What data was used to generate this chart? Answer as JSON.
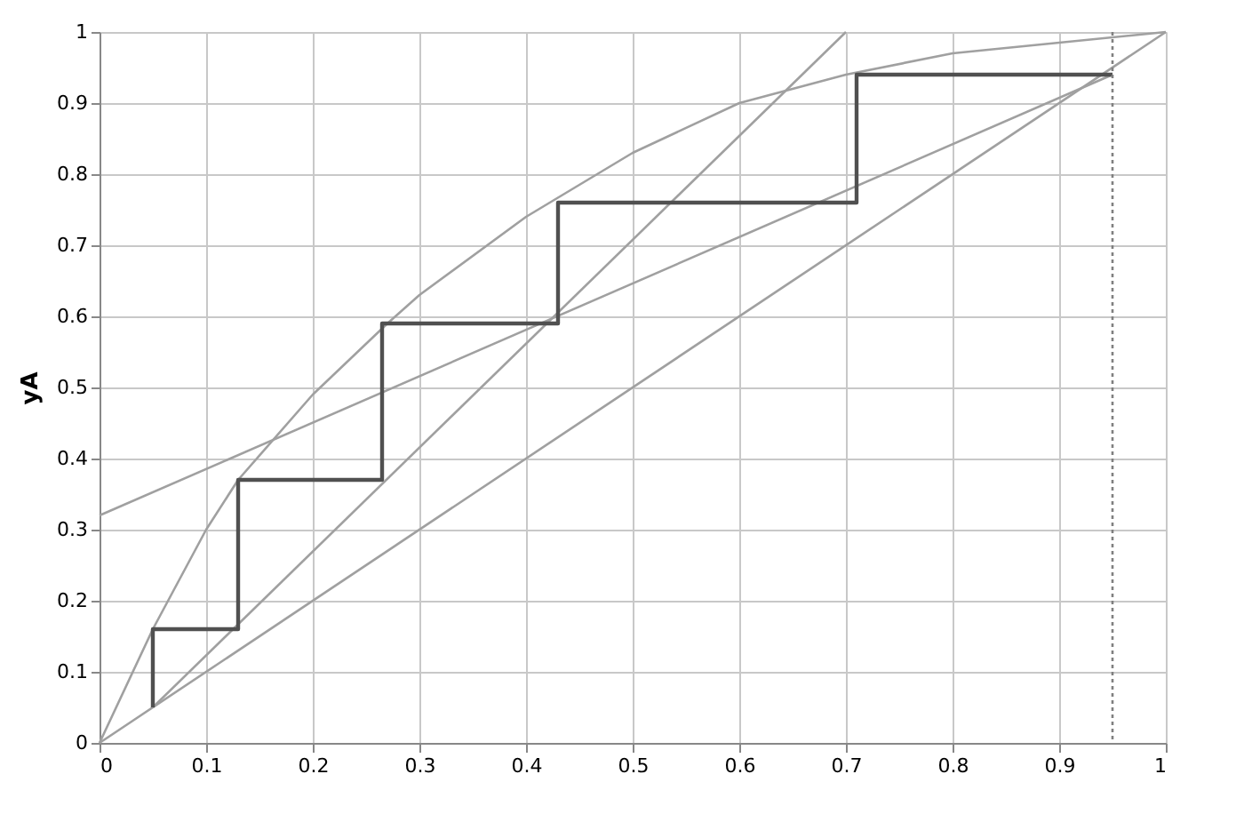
{
  "chart_data": {
    "type": "line",
    "ylabel": "yA",
    "xlim": [
      0,
      1
    ],
    "ylim": [
      0,
      1
    ],
    "xticks": [
      0,
      0.1,
      0.2,
      0.3,
      0.4,
      0.5,
      0.6,
      0.7,
      0.8,
      0.9,
      1
    ],
    "yticks": [
      0,
      0.1,
      0.2,
      0.3,
      0.4,
      0.5,
      0.6,
      0.7,
      0.8,
      0.9,
      1
    ],
    "grid": true,
    "marker": "none",
    "line_style": "solid",
    "series": [
      {
        "color": "#a0a0a0",
        "x": [
          0,
          1
        ],
        "values": [
          0,
          1
        ]
      },
      {
        "color": "#a0a0a0",
        "x": [
          0,
          0.05,
          0.1,
          0.13,
          0.2,
          0.27,
          0.3,
          0.4,
          0.5,
          0.6,
          0.7,
          0.8,
          1
        ],
        "values": [
          0,
          0.16,
          0.3,
          0.37,
          0.49,
          0.59,
          0.63,
          0.74,
          0.83,
          0.9,
          0.94,
          0.97,
          1
        ]
      },
      {
        "color": "#a0a0a0",
        "x": [
          0,
          0.95
        ],
        "values": [
          0.32,
          0.94
        ]
      },
      {
        "color": "#a0a0a0",
        "x": [
          0.05,
          0.7
        ],
        "values": [
          0.05,
          1
        ]
      },
      {
        "color": "#505050",
        "x": [
          0.05,
          0.05,
          0.13,
          0.13,
          0.265,
          0.265,
          0.43,
          0.43,
          0.71,
          0.71,
          0.95
        ],
        "values": [
          0.05,
          0.16,
          0.16,
          0.37,
          0.37,
          0.59,
          0.59,
          0.76,
          0.76,
          0.94,
          0.94
        ]
      }
    ],
    "ref_lines": [
      {
        "axis": "x",
        "value": 0.95,
        "label": null,
        "color": "#808080",
        "line_style": "dotted"
      }
    ]
  }
}
